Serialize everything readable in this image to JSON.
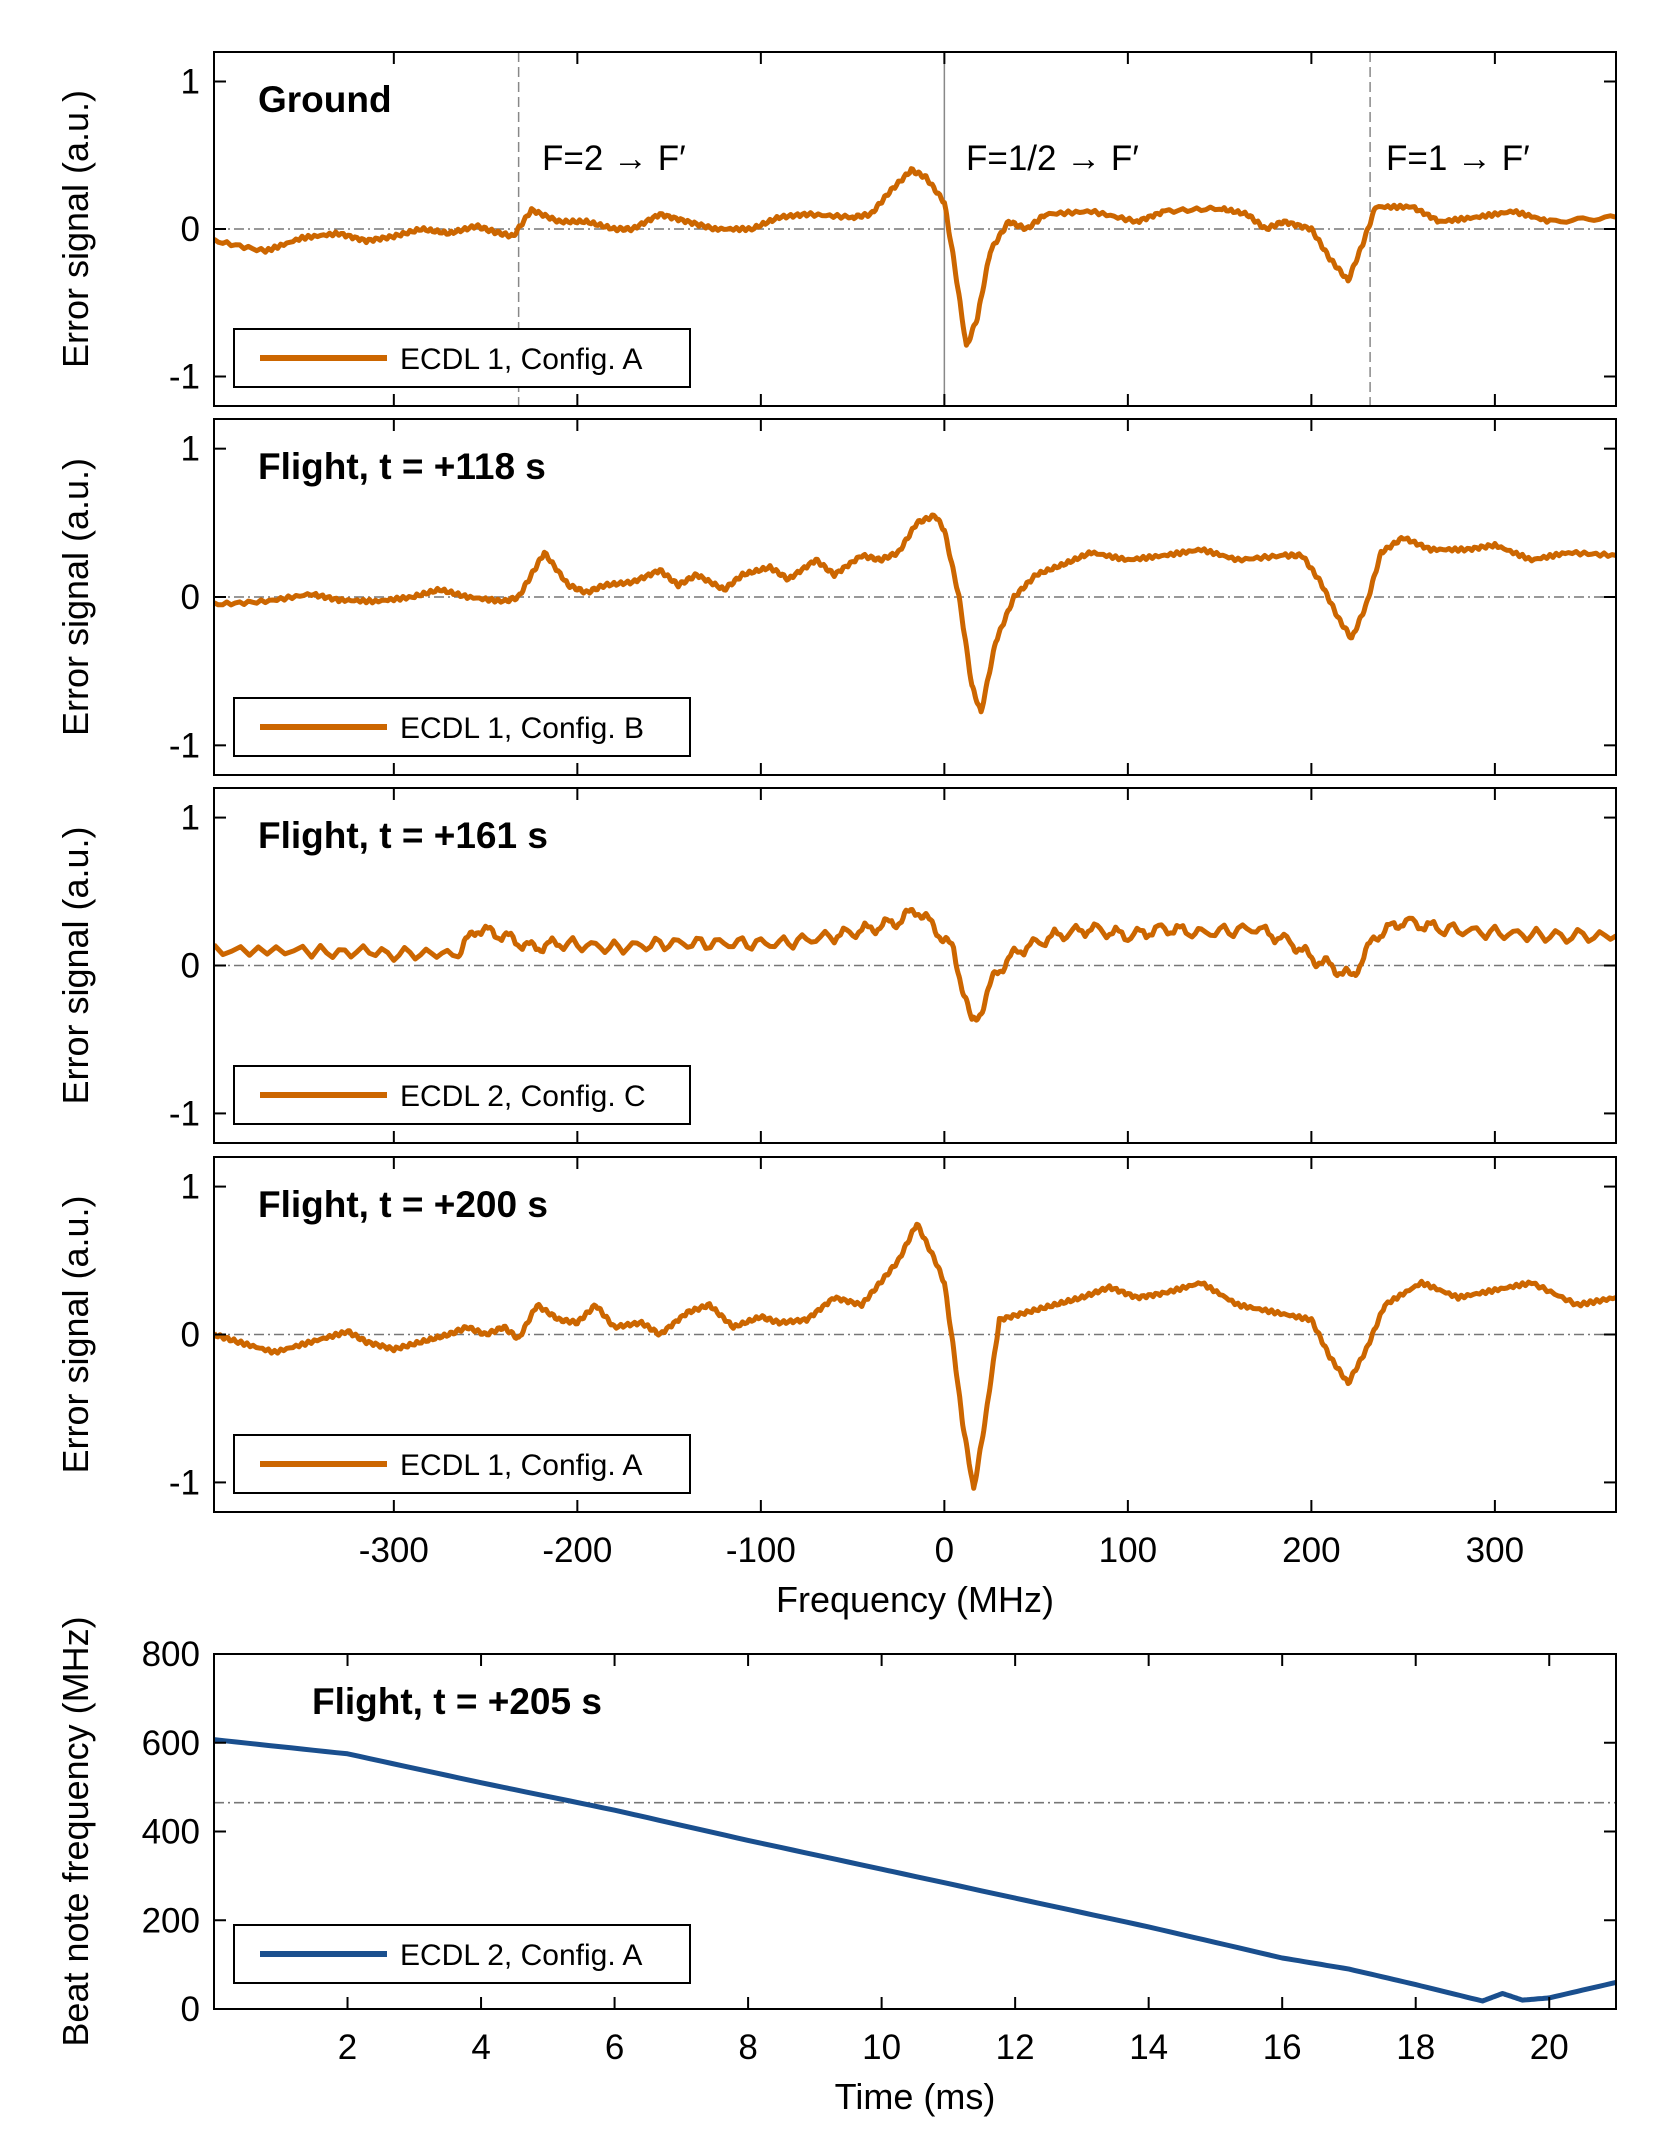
{
  "chart_data": [
    {
      "type": "line",
      "panel_label": "Ground",
      "ylabel": "Error signal (a.u.)",
      "ylim": [
        -1.2,
        1.2
      ],
      "yticks": [
        -1,
        0,
        1
      ],
      "xlim": [
        -398,
        366
      ],
      "reference_line_y": 0,
      "vertical_markers": [
        {
          "x": -232,
          "style": "dashed"
        },
        {
          "x": 0,
          "style": "solid"
        },
        {
          "x": 232,
          "style": "dashed"
        }
      ],
      "annotations": [
        "F=2 → F′",
        "F=1/2 → F′",
        "F=1 → F′"
      ],
      "series": [
        {
          "name": "ECDL 1, Config. A",
          "color": "#CC6600",
          "x": [
            -398,
            -370,
            -350,
            -330,
            -315,
            -300,
            -285,
            -270,
            -255,
            -245,
            -235,
            -225,
            -210,
            -195,
            -180,
            -170,
            -155,
            -140,
            -125,
            -105,
            -90,
            -75,
            -50,
            -40,
            -30,
            -18,
            -10,
            0,
            5,
            12,
            18,
            25,
            35,
            45,
            55,
            80,
            105,
            120,
            150,
            165,
            175,
            185,
            200,
            210,
            220,
            228,
            235,
            255,
            270,
            290,
            310,
            330,
            366
          ],
          "y": [
            -0.08,
            -0.15,
            -0.06,
            -0.03,
            -0.08,
            -0.05,
            0.0,
            -0.03,
            0.02,
            -0.02,
            -0.05,
            0.13,
            0.05,
            0.05,
            0.0,
            0.0,
            0.1,
            0.05,
            0.0,
            0.0,
            0.08,
            0.1,
            0.08,
            0.1,
            0.25,
            0.4,
            0.35,
            0.18,
            -0.2,
            -0.8,
            -0.6,
            -0.15,
            0.05,
            0.0,
            0.1,
            0.12,
            0.05,
            0.12,
            0.14,
            0.1,
            0.0,
            0.05,
            0.0,
            -0.2,
            -0.35,
            -0.1,
            0.15,
            0.15,
            0.05,
            0.08,
            0.12,
            0.05,
            0.08
          ]
        }
      ]
    },
    {
      "type": "line",
      "panel_label": "Flight, t = +118 s",
      "ylabel": "Error signal (a.u.)",
      "ylim": [
        -1.2,
        1.2
      ],
      "yticks": [
        -1,
        0,
        1
      ],
      "xlim": [
        -398,
        366
      ],
      "reference_line_y": 0,
      "series": [
        {
          "name": "ECDL 1, Config. B",
          "color": "#CC6600",
          "x": [
            -398,
            -370,
            -345,
            -330,
            -310,
            -290,
            -275,
            -260,
            -240,
            -232,
            -225,
            -218,
            -205,
            -195,
            -185,
            -170,
            -155,
            -145,
            -135,
            -120,
            -110,
            -95,
            -85,
            -70,
            -60,
            -45,
            -35,
            -25,
            -15,
            -5,
            0,
            8,
            15,
            20,
            28,
            38,
            50,
            65,
            80,
            100,
            120,
            140,
            160,
            185,
            195,
            205,
            215,
            222,
            230,
            238,
            250,
            265,
            285,
            300,
            320,
            340,
            366
          ],
          "y": [
            -0.05,
            -0.03,
            0.02,
            -0.02,
            -0.03,
            0.0,
            0.05,
            0.0,
            -0.03,
            0.0,
            0.15,
            0.3,
            0.08,
            0.03,
            0.08,
            0.1,
            0.18,
            0.08,
            0.15,
            0.05,
            0.15,
            0.2,
            0.12,
            0.25,
            0.15,
            0.28,
            0.25,
            0.3,
            0.5,
            0.55,
            0.45,
            0.0,
            -0.6,
            -0.78,
            -0.3,
            0.0,
            0.15,
            0.22,
            0.3,
            0.25,
            0.28,
            0.32,
            0.25,
            0.28,
            0.28,
            0.1,
            -0.15,
            -0.28,
            -0.05,
            0.3,
            0.4,
            0.32,
            0.32,
            0.35,
            0.25,
            0.3,
            0.28
          ]
        }
      ]
    },
    {
      "type": "line",
      "panel_label": "Flight, t = +161 s",
      "ylabel": "Error signal (a.u.)",
      "ylim": [
        -1.2,
        1.2
      ],
      "yticks": [
        -1,
        0,
        1
      ],
      "xlim": [
        -398,
        366
      ],
      "reference_line_y": 0,
      "series": [
        {
          "name": "ECDL 2, Config. C",
          "color": "#CC6600",
          "x": [
            -398,
            -340,
            -300,
            -265,
            -255,
            -240,
            -225,
            -210,
            -180,
            -150,
            -120,
            -90,
            -60,
            -40,
            -25,
            -15,
            -5,
            5,
            10,
            15,
            20,
            28,
            40,
            60,
            80,
            100,
            120,
            140,
            170,
            190,
            200,
            210,
            222,
            235,
            250,
            270,
            300,
            330,
            366
          ],
          "y": [
            0.1,
            0.1,
            0.08,
            0.08,
            0.25,
            0.2,
            0.12,
            0.15,
            0.12,
            0.15,
            0.15,
            0.15,
            0.2,
            0.25,
            0.3,
            0.38,
            0.25,
            0.1,
            -0.15,
            -0.4,
            -0.3,
            -0.05,
            0.1,
            0.2,
            0.25,
            0.2,
            0.25,
            0.22,
            0.25,
            0.15,
            0.05,
            0.0,
            -0.08,
            0.2,
            0.3,
            0.25,
            0.22,
            0.2,
            0.2
          ]
        }
      ]
    },
    {
      "type": "line",
      "panel_label": "Flight, t = +200 s",
      "ylabel": "Error signal (a.u.)",
      "xlabel": "Frequency (MHz)",
      "ylim": [
        -1.2,
        1.2
      ],
      "yticks": [
        -1,
        0,
        1
      ],
      "xlim": [
        -398,
        366
      ],
      "xticks": [
        -300,
        -200,
        -100,
        0,
        100,
        200,
        300
      ],
      "reference_line_y": 0,
      "series": [
        {
          "name": "ECDL 1, Config. A",
          "color": "#CC6600",
          "x": [
            -398,
            -385,
            -365,
            -345,
            -325,
            -315,
            -300,
            -285,
            -270,
            -260,
            -250,
            -240,
            -232,
            -222,
            -210,
            -200,
            -190,
            -180,
            -165,
            -155,
            -140,
            -128,
            -115,
            -100,
            -90,
            -75,
            -60,
            -45,
            -35,
            -25,
            -15,
            -5,
            0,
            5,
            10,
            16,
            22,
            30,
            45,
            60,
            75,
            90,
            105,
            120,
            140,
            160,
            180,
            200,
            210,
            220,
            230,
            240,
            260,
            280,
            300,
            320,
            345,
            366
          ],
          "y": [
            0.0,
            -0.05,
            -0.12,
            -0.05,
            0.02,
            -0.05,
            -0.1,
            -0.05,
            0.0,
            0.05,
            0.0,
            0.05,
            -0.03,
            0.2,
            0.1,
            0.08,
            0.2,
            0.05,
            0.08,
            0.0,
            0.15,
            0.2,
            0.05,
            0.12,
            0.08,
            0.1,
            0.25,
            0.2,
            0.35,
            0.5,
            0.75,
            0.5,
            0.35,
            -0.1,
            -0.6,
            -1.05,
            -0.6,
            0.1,
            0.15,
            0.2,
            0.25,
            0.32,
            0.25,
            0.28,
            0.35,
            0.2,
            0.15,
            0.1,
            -0.15,
            -0.33,
            -0.1,
            0.2,
            0.35,
            0.25,
            0.3,
            0.35,
            0.2,
            0.25
          ]
        }
      ]
    },
    {
      "type": "line",
      "panel_label": "Flight, t = +205 s",
      "ylabel": "Beat note frequency (MHz)",
      "xlabel": "Time (ms)",
      "ylim": [
        0,
        800
      ],
      "yticks": [
        0,
        200,
        400,
        600,
        800
      ],
      "xlim": [
        0,
        21
      ],
      "xticks": [
        2,
        4,
        6,
        8,
        10,
        12,
        14,
        16,
        18,
        20
      ],
      "reference_line_y": 465,
      "series": [
        {
          "name": "ECDL 2, Config. A",
          "color": "#1A4F8E",
          "x": [
            0,
            2,
            4,
            6,
            8,
            10,
            12,
            14,
            16,
            17,
            18,
            19,
            19.3,
            19.6,
            20,
            21
          ],
          "y": [
            607,
            575,
            510,
            448,
            380,
            315,
            250,
            185,
            115,
            90,
            55,
            18,
            35,
            20,
            25,
            60
          ]
        }
      ]
    }
  ]
}
